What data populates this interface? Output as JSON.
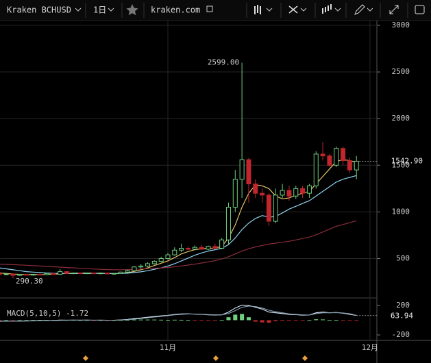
{
  "toolbar": {
    "symbol": "Kraken BCHUSD",
    "interval": "1日",
    "site": "kraken.com"
  },
  "chart_data": {
    "type": "candlestick",
    "categories": [
      null,
      null,
      null,
      null,
      null,
      null,
      null,
      null,
      null,
      null,
      null,
      null,
      null,
      null,
      null,
      null,
      null,
      null,
      null,
      null,
      null,
      null,
      null,
      null,
      null,
      null,
      null,
      null,
      null,
      null,
      null,
      null,
      null,
      null,
      null,
      null,
      null,
      null,
      null,
      null,
      null,
      null,
      null,
      null,
      null,
      null,
      null,
      null,
      null,
      null,
      null,
      null,
      null,
      null
    ],
    "x_labels": [
      {
        "value": 25,
        "label": "11月"
      },
      {
        "value": 55,
        "label": "12月"
      }
    ],
    "open": [
      340,
      330,
      335,
      320,
      330,
      325,
      330,
      328,
      340,
      330,
      360,
      340,
      345,
      340,
      345,
      338,
      345,
      335,
      340,
      355,
      370,
      410,
      420,
      445,
      470,
      500,
      540,
      590,
      610,
      600,
      620,
      600,
      630,
      610,
      700,
      1050,
      1350,
      1560,
      1300,
      1200,
      1180,
      900,
      1180,
      1230,
      1170,
      1250,
      1200,
      1280,
      1620,
      1600,
      1500,
      1680,
      1550,
      1450
    ],
    "high": [
      360,
      345,
      340,
      335,
      335,
      335,
      340,
      345,
      345,
      385,
      365,
      350,
      350,
      350,
      350,
      350,
      350,
      345,
      360,
      380,
      420,
      440,
      460,
      480,
      520,
      560,
      620,
      660,
      630,
      640,
      650,
      640,
      660,
      720,
      1100,
      1450,
      2599,
      1580,
      1350,
      1250,
      1200,
      1250,
      1300,
      1280,
      1280,
      1280,
      1300,
      1650,
      1750,
      1620,
      1700,
      1700,
      1580,
      1600
    ],
    "low": [
      320,
      320,
      290.3,
      315,
      318,
      318,
      320,
      320,
      325,
      325,
      335,
      335,
      335,
      335,
      332,
      332,
      330,
      330,
      335,
      350,
      360,
      395,
      410,
      435,
      460,
      490,
      530,
      570,
      590,
      590,
      590,
      590,
      600,
      600,
      650,
      1000,
      1150,
      1100,
      1150,
      1100,
      850,
      880,
      1150,
      1120,
      1140,
      1150,
      1150,
      1250,
      1550,
      1480,
      1480,
      1500,
      1420,
      1350
    ],
    "close": [
      330,
      335,
      320,
      330,
      325,
      330,
      328,
      340,
      330,
      360,
      340,
      345,
      340,
      345,
      338,
      345,
      335,
      340,
      355,
      370,
      410,
      420,
      445,
      470,
      500,
      540,
      590,
      610,
      600,
      620,
      600,
      630,
      610,
      700,
      1050,
      1350,
      1560,
      1300,
      1200,
      1180,
      900,
      1180,
      1230,
      1170,
      1250,
      1200,
      1280,
      1620,
      1600,
      1500,
      1680,
      1550,
      1450,
      1542.9
    ],
    "up_color": "#6fcf7f",
    "down_color": "#c0262c",
    "series": [
      {
        "color": "#e8c36a",
        "values": [
          345,
          340,
          335,
          330,
          328,
          328,
          327,
          330,
          332,
          338,
          340,
          343,
          345,
          345,
          343,
          342,
          340,
          340,
          342,
          348,
          362,
          380,
          400,
          425,
          450,
          475,
          510,
          550,
          575,
          595,
          605,
          610,
          612,
          630,
          720,
          860,
          1050,
          1200,
          1290,
          1280,
          1250,
          1170,
          1140,
          1150,
          1180,
          1200,
          1220,
          1300,
          1380,
          1460,
          1540,
          1560,
          1550,
          1530
        ]
      },
      {
        "color": "#8fd3ef",
        "values": [
          400,
          390,
          380,
          370,
          360,
          355,
          350,
          345,
          342,
          340,
          340,
          339,
          340,
          340,
          341,
          342,
          341,
          340,
          341,
          343,
          350,
          358,
          370,
          385,
          400,
          420,
          445,
          475,
          505,
          535,
          560,
          580,
          595,
          610,
          650,
          720,
          810,
          880,
          930,
          960,
          945,
          950,
          990,
          1030,
          1060,
          1090,
          1120,
          1170,
          1220,
          1270,
          1320,
          1350,
          1370,
          1390
        ]
      },
      {
        "color": "#8a2d3a",
        "values": [
          440,
          438,
          435,
          432,
          428,
          424,
          420,
          416,
          412,
          408,
          404,
          400,
          396,
          392,
          388,
          385,
          382,
          380,
          380,
          382,
          385,
          388,
          392,
          396,
          400,
          405,
          412,
          420,
          430,
          440,
          452,
          465,
          478,
          495,
          520,
          550,
          580,
          605,
          625,
          640,
          655,
          665,
          675,
          685,
          700,
          715,
          730,
          755,
          785,
          815,
          845,
          865,
          885,
          905
        ]
      }
    ],
    "ylim": [
      100,
      3051
    ],
    "yticks": [
      500,
      1000,
      1500,
      2000,
      2500,
      3000
    ],
    "high_label": {
      "value": 2599,
      "label": "2599.00"
    },
    "low_label": {
      "value": 290.3,
      "label": "290.30"
    },
    "last_price": {
      "value": 1542.9,
      "label": "1542.90"
    },
    "macd": {
      "title": "MACD(5,10,5)",
      "ylim": [
        -274,
        283
      ],
      "yticks": [
        200,
        -200
      ],
      "macd_color": "#d7ecff",
      "signal_color": "#8aa0b0",
      "macd": [
        -15,
        -12,
        -14,
        -12,
        -10,
        -8,
        -7,
        -4,
        -3,
        2,
        1,
        2,
        1,
        2,
        0,
        1,
        -1,
        0,
        4,
        10,
        22,
        30,
        40,
        50,
        58,
        66,
        78,
        85,
        86,
        82,
        80,
        72,
        70,
        72,
        110,
        165,
        205,
        200,
        175,
        150,
        110,
        100,
        90,
        78,
        75,
        68,
        70,
        100,
        110,
        100,
        105,
        95,
        80,
        63.94
      ],
      "signal": [
        -12,
        -12,
        -13,
        -12,
        -11,
        -10,
        -9,
        -7,
        -6,
        -3,
        -1,
        0,
        1,
        1,
        1,
        1,
        0,
        0,
        2,
        6,
        14,
        22,
        32,
        42,
        52,
        62,
        72,
        80,
        84,
        83,
        81,
        76,
        73,
        72,
        90,
        130,
        175,
        190,
        185,
        165,
        135,
        115,
        100,
        85,
        78,
        72,
        70,
        88,
        100,
        100,
        103,
        98,
        87,
        65.7
      ],
      "histogram": [
        -3,
        0,
        -1,
        0,
        1,
        2,
        2,
        3,
        3,
        5,
        2,
        2,
        0,
        1,
        -1,
        0,
        -1,
        0,
        2,
        4,
        8,
        8,
        8,
        8,
        6,
        4,
        6,
        5,
        2,
        -1,
        -1,
        -4,
        -3,
        0,
        40,
        75,
        85,
        40,
        -20,
        -30,
        -35,
        -15,
        -10,
        -7,
        -3,
        -4,
        0,
        12,
        10,
        0,
        2,
        -3,
        -7,
        -1.72
      ]
    }
  }
}
